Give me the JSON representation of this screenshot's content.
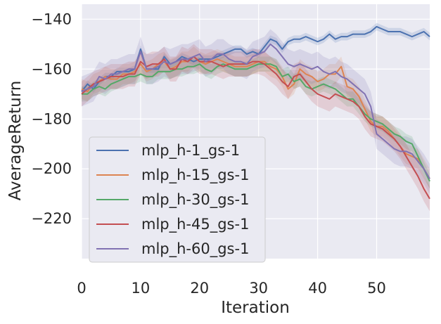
{
  "chart_data": {
    "type": "line",
    "title": "",
    "xlabel": "Iteration",
    "ylabel": "AverageReturn",
    "xlim": [
      0,
      59
    ],
    "ylim": [
      -236,
      -134
    ],
    "xticks": [
      0,
      10,
      20,
      30,
      40,
      50
    ],
    "yticks": [
      -140,
      -160,
      -180,
      -200,
      -220
    ],
    "grid": true,
    "legend_position": "lower-left",
    "x": [
      0,
      1,
      2,
      3,
      4,
      5,
      6,
      7,
      8,
      9,
      10,
      11,
      12,
      13,
      14,
      15,
      16,
      17,
      18,
      19,
      20,
      21,
      22,
      23,
      24,
      25,
      26,
      27,
      28,
      29,
      30,
      31,
      32,
      33,
      34,
      35,
      36,
      37,
      38,
      39,
      40,
      41,
      42,
      43,
      44,
      45,
      46,
      47,
      48,
      49,
      50,
      51,
      52,
      53,
      54,
      55,
      56,
      57,
      58,
      59
    ],
    "series": [
      {
        "name": "mlp_h-1_gs-1",
        "color": "#4c72b0",
        "values": [
          -169,
          -166,
          -168,
          -165,
          -163,
          -163,
          -161,
          -161,
          -161,
          -160,
          -152,
          -160,
          -160,
          -160,
          -155,
          -158,
          -157,
          -155,
          -156,
          -157,
          -156,
          -156,
          -156,
          -155,
          -154,
          -153,
          -152,
          -152,
          -154,
          -153,
          -154,
          -151,
          -148,
          -149,
          -152,
          -149,
          -148,
          -148,
          -147,
          -148,
          -149,
          -148,
          -146,
          -148,
          -147,
          -147,
          -146,
          -146,
          -146,
          -145,
          -143,
          -144,
          -145,
          -145,
          -145,
          -146,
          -147,
          -146,
          -145,
          -147
        ],
        "band": 1.5
      },
      {
        "name": "mlp_h-15_gs-1",
        "color": "#dd8452",
        "values": [
          -168,
          -169,
          -166,
          -165,
          -163,
          -164,
          -164,
          -162,
          -162,
          -161,
          -158,
          -161,
          -160,
          -158,
          -157,
          -160,
          -159,
          -157,
          -157,
          -155,
          -157,
          -158,
          -157,
          -156,
          -157,
          -158,
          -159,
          -159,
          -159,
          -158,
          -157,
          -157,
          -159,
          -160,
          -163,
          -168,
          -166,
          -160,
          -162,
          -163,
          -165,
          -164,
          -162,
          -162,
          -159,
          -167,
          -168,
          -171,
          -176,
          -181,
          -183,
          -183,
          -185,
          -188,
          -191,
          -194,
          -195,
          -196,
          -200,
          -204
        ],
        "band": 4
      },
      {
        "name": "mlp_h-30_gs-1",
        "color": "#55a868",
        "values": [
          -170,
          -170,
          -168,
          -167,
          -168,
          -166,
          -165,
          -164,
          -163,
          -163,
          -162,
          -163,
          -163,
          -161,
          -161,
          -161,
          -160,
          -160,
          -159,
          -159,
          -158,
          -160,
          -161,
          -159,
          -158,
          -159,
          -160,
          -160,
          -160,
          -159,
          -158,
          -158,
          -158,
          -159,
          -163,
          -162,
          -165,
          -164,
          -167,
          -168,
          -167,
          -166,
          -167,
          -168,
          -170,
          -172,
          -172,
          -175,
          -178,
          -180,
          -181,
          -182,
          -184,
          -186,
          -187,
          -189,
          -190,
          -195,
          -200,
          -205
        ],
        "band": 3
      },
      {
        "name": "mlp_h-45_gs-1",
        "color": "#c44e52",
        "values": [
          -170,
          -168,
          -166,
          -165,
          -164,
          -163,
          -163,
          -163,
          -162,
          -162,
          -157,
          -159,
          -158,
          -158,
          -156,
          -160,
          -160,
          -156,
          -157,
          -155,
          -157,
          -157,
          -157,
          -158,
          -159,
          -158,
          -158,
          -158,
          -158,
          -157,
          -157,
          -158,
          -160,
          -162,
          -165,
          -167,
          -163,
          -162,
          -165,
          -168,
          -170,
          -171,
          -172,
          -170,
          -171,
          -172,
          -173,
          -175,
          -179,
          -182,
          -183,
          -184,
          -186,
          -188,
          -191,
          -195,
          -199,
          -203,
          -208,
          -212
        ],
        "band": 5
      },
      {
        "name": "mlp_h-60_gs-1",
        "color": "#8172b2",
        "values": [
          -169,
          -168,
          -167,
          -163,
          -164,
          -162,
          -162,
          -161,
          -160,
          -160,
          -153,
          -160,
          -160,
          -159,
          -157,
          -158,
          -157,
          -156,
          -156,
          -155,
          -154,
          -157,
          -156,
          -154,
          -154,
          -156,
          -157,
          -157,
          -158,
          -155,
          -154,
          -153,
          -150,
          -152,
          -155,
          -158,
          -159,
          -158,
          -159,
          -160,
          -159,
          -161,
          -162,
          -161,
          -163,
          -164,
          -166,
          -168,
          -170,
          -175,
          -186,
          -188,
          -190,
          -192,
          -193,
          -193,
          -194,
          -197,
          -200,
          -204
        ],
        "band": 6
      }
    ]
  }
}
